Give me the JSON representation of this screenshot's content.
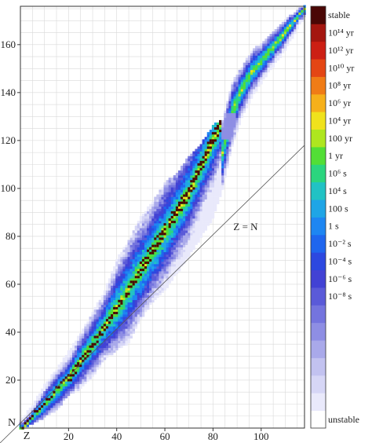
{
  "chart_data": {
    "type": "heatmap",
    "title": "",
    "xlabel": "Z",
    "ylabel": "N",
    "xlim": [
      0,
      118
    ],
    "ylim": [
      0,
      176
    ],
    "xticks": [
      20,
      40,
      60,
      80,
      100
    ],
    "yticks": [
      20,
      40,
      60,
      80,
      100,
      120,
      140,
      160
    ],
    "grid": true,
    "diagonal_label": "Z = N",
    "colorbar": {
      "position": "right",
      "labels": [
        {
          "text": "stable",
          "level": 23
        },
        {
          "text": "10¹⁴ yr",
          "level": 22
        },
        {
          "text": "10¹² yr",
          "level": 21
        },
        {
          "text": "10¹⁰ yr",
          "level": 20
        },
        {
          "text": "10⁸ yr",
          "level": 19
        },
        {
          "text": "10⁶ yr",
          "level": 18
        },
        {
          "text": "10⁴ yr",
          "level": 17
        },
        {
          "text": "100 yr",
          "level": 16
        },
        {
          "text": "1 yr",
          "level": 15
        },
        {
          "text": "10⁶ s",
          "level": 14
        },
        {
          "text": "10⁴ s",
          "level": 13
        },
        {
          "text": "100 s",
          "level": 12
        },
        {
          "text": "1 s",
          "level": 11
        },
        {
          "text": "10⁻² s",
          "level": 10
        },
        {
          "text": "10⁻⁴ s",
          "level": 9
        },
        {
          "text": "10⁻⁶ s",
          "level": 8
        },
        {
          "text": "10⁻⁸ s",
          "level": 7
        },
        {
          "text": "unstable",
          "level": 0
        }
      ],
      "colors": [
        "#ffffff",
        "#e9e9fb",
        "#d6d6f6",
        "#c2c2f0",
        "#a9a9ea",
        "#8e8ee4",
        "#7474de",
        "#5a5ad8",
        "#4242d4",
        "#2c48e0",
        "#1f66ee",
        "#1e86f2",
        "#1fa5e6",
        "#21c2c4",
        "#2bd57e",
        "#52de36",
        "#aee61f",
        "#f0e21c",
        "#f6b01a",
        "#f07c16",
        "#e44614",
        "#cc1f14",
        "#a4160f",
        "#4a0705"
      ]
    },
    "band": [
      {
        "z": 0,
        "n_min": 0,
        "n_max": 3
      },
      {
        "z": 5,
        "n_min": 2,
        "n_max": 9
      },
      {
        "z": 10,
        "n_min": 5,
        "n_max": 18
      },
      {
        "z": 15,
        "n_min": 8,
        "n_max": 24
      },
      {
        "z": 20,
        "n_min": 14,
        "n_max": 32
      },
      {
        "z": 25,
        "n_min": 17,
        "n_max": 39
      },
      {
        "z": 30,
        "n_min": 22,
        "n_max": 48
      },
      {
        "z": 35,
        "n_min": 29,
        "n_max": 57
      },
      {
        "z": 40,
        "n_min": 33,
        "n_max": 70
      },
      {
        "z": 45,
        "n_min": 36,
        "n_max": 78
      },
      {
        "z": 50,
        "n_min": 46,
        "n_max": 88
      },
      {
        "z": 55,
        "n_min": 53,
        "n_max": 94
      },
      {
        "z": 60,
        "n_min": 58,
        "n_max": 102
      },
      {
        "z": 65,
        "n_min": 65,
        "n_max": 106
      },
      {
        "z": 70,
        "n_min": 72,
        "n_max": 113
      },
      {
        "z": 75,
        "n_min": 80,
        "n_max": 118
      },
      {
        "z": 80,
        "n_min": 88,
        "n_max": 126
      },
      {
        "z": 84,
        "n_min": 100,
        "n_max": 128
      },
      {
        "z": 88,
        "n_min": 118,
        "n_max": 144
      },
      {
        "z": 92,
        "n_min": 130,
        "n_max": 150
      },
      {
        "z": 96,
        "n_min": 138,
        "n_max": 157
      },
      {
        "z": 100,
        "n_min": 144,
        "n_max": 160
      },
      {
        "z": 104,
        "n_min": 150,
        "n_max": 164
      },
      {
        "z": 110,
        "n_min": 158,
        "n_max": 170
      },
      {
        "z": 118,
        "n_min": 172,
        "n_max": 176
      }
    ],
    "stable_line": [
      {
        "z": 1,
        "n": 0
      },
      {
        "z": 10,
        "n": 10
      },
      {
        "z": 20,
        "n": 21
      },
      {
        "z": 30,
        "n": 35
      },
      {
        "z": 40,
        "n": 50
      },
      {
        "z": 50,
        "n": 66
      },
      {
        "z": 60,
        "n": 82
      },
      {
        "z": 70,
        "n": 98
      },
      {
        "z": 80,
        "n": 120
      },
      {
        "z": 83,
        "n": 126
      }
    ]
  }
}
